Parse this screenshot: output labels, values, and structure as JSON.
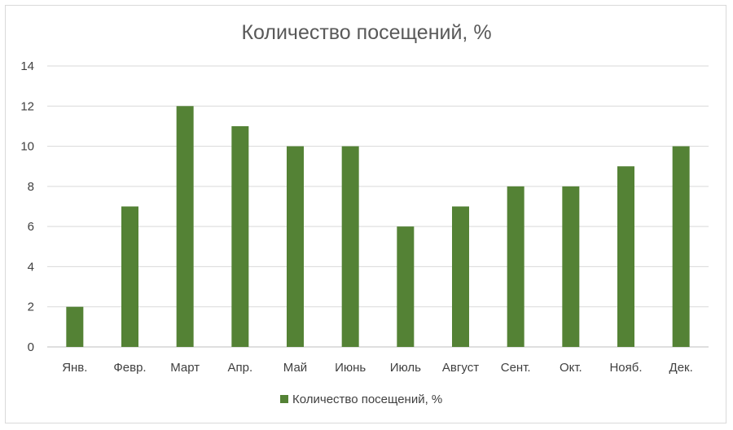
{
  "chart_data": {
    "type": "bar",
    "title": "Количество посещений, %",
    "categories": [
      "Янв.",
      "Февр.",
      "Март",
      "Апр.",
      "Май",
      "Июнь",
      "Июль",
      "Август",
      "Сент.",
      "Окт.",
      "Нояб.",
      "Дек."
    ],
    "series": [
      {
        "name": "Количество посещений, %",
        "values": [
          2,
          7,
          12,
          11,
          10,
          10,
          6,
          7,
          8,
          8,
          9,
          10
        ],
        "color": "#548235"
      }
    ],
    "ylim": [
      0,
      14
    ],
    "yticks": [
      0,
      2,
      4,
      6,
      8,
      10,
      12,
      14
    ],
    "grid": true,
    "legend_position": "bottom"
  }
}
